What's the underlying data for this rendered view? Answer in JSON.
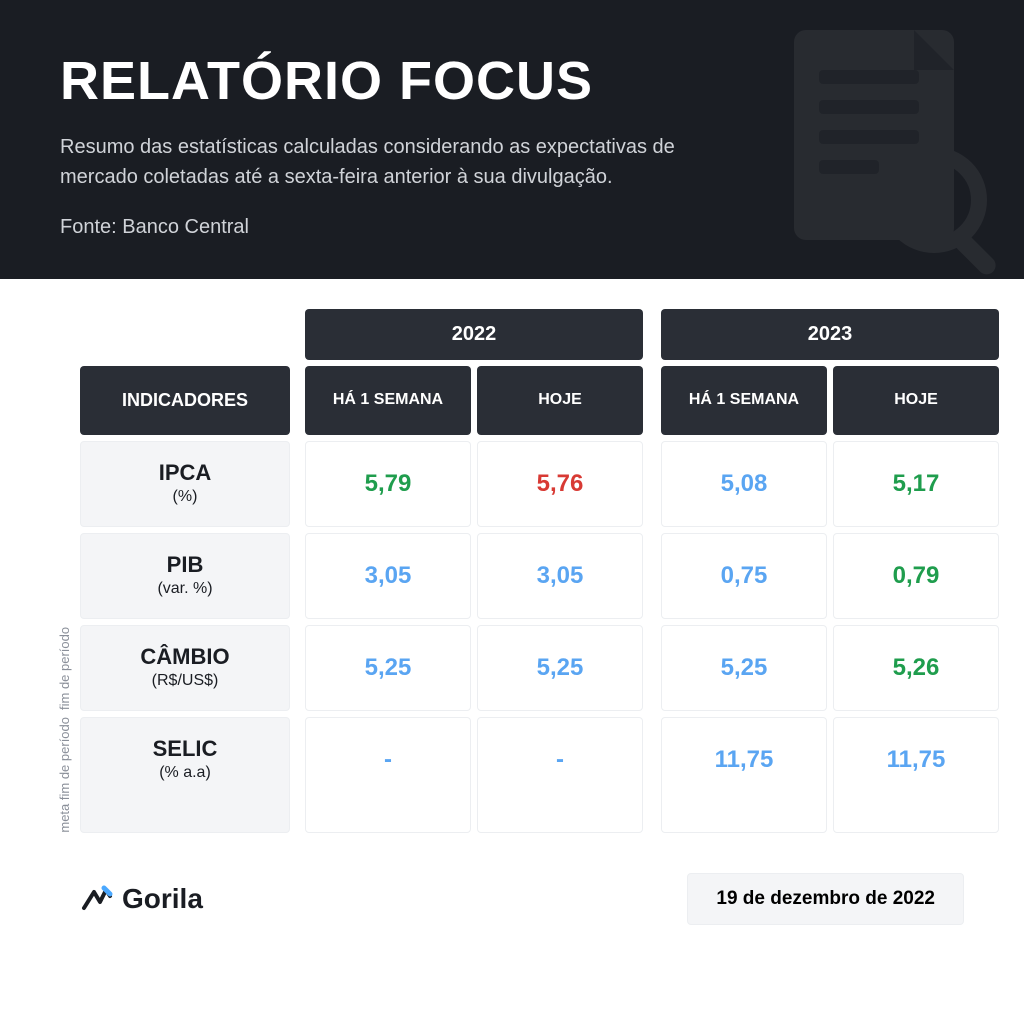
{
  "header": {
    "title": "RELATÓRIO FOCUS",
    "description": "Resumo das estatísticas calculadas considerando as expectativas de mercado coletadas até a sexta-feira anterior à sua divulgação.",
    "source": "Fonte: Banco Central"
  },
  "table": {
    "years": [
      "2022",
      "2023"
    ],
    "subcolumns": [
      "HÁ 1 SEMANA",
      "HOJE"
    ],
    "indicators_header": "INDICADORES",
    "side_labels": [
      "fim de período",
      "meta fim de período"
    ],
    "rows": [
      {
        "name": "IPCA",
        "unit": "(%)",
        "side_label": null,
        "values": [
          {
            "text": "5,79",
            "color": "green"
          },
          {
            "text": "5,76",
            "color": "red"
          },
          {
            "text": "5,08",
            "color": "blue"
          },
          {
            "text": "5,17",
            "color": "green"
          }
        ]
      },
      {
        "name": "PIB",
        "unit": "(var. %)",
        "side_label": null,
        "values": [
          {
            "text": "3,05",
            "color": "blue"
          },
          {
            "text": "3,05",
            "color": "blue"
          },
          {
            "text": "0,75",
            "color": "blue"
          },
          {
            "text": "0,79",
            "color": "green"
          }
        ]
      },
      {
        "name": "CÂMBIO",
        "unit": "(R$/US$)",
        "side_label": "fim de período",
        "values": [
          {
            "text": "5,25",
            "color": "blue"
          },
          {
            "text": "5,25",
            "color": "blue"
          },
          {
            "text": "5,25",
            "color": "blue"
          },
          {
            "text": "5,26",
            "color": "green"
          }
        ]
      },
      {
        "name": "SELIC",
        "unit": "(% a.a)",
        "side_label": "meta fim de período",
        "values": [
          {
            "text": "-",
            "color": "blue"
          },
          {
            "text": "-",
            "color": "blue"
          },
          {
            "text": "11,75",
            "color": "blue"
          },
          {
            "text": "11,75",
            "color": "blue"
          }
        ]
      }
    ]
  },
  "footer": {
    "brand": "Gorila",
    "date": "19 de dezembro de 2022"
  },
  "colors": {
    "header_bg": "#1a1d23",
    "cell_header_bg": "#2a2e36",
    "indicator_bg": "#f4f5f7",
    "border": "#eceef1",
    "green": "#1f9d4d",
    "red": "#d83a34",
    "blue": "#5aa5f2"
  }
}
